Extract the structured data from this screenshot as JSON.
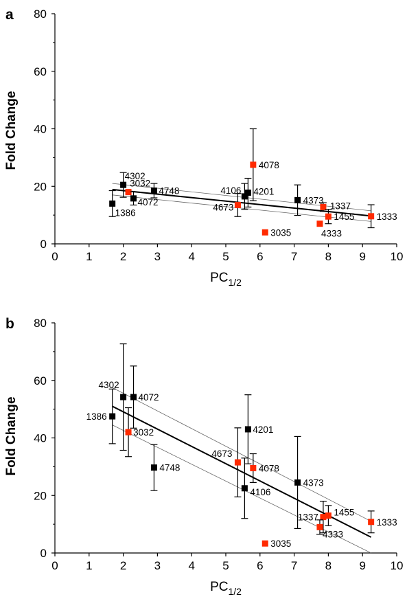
{
  "chart_data": [
    {
      "type": "scatter",
      "panel": "a",
      "xlabel": "PC",
      "xlabel_sub": "1/2",
      "ylabel": "Fold Change",
      "xlim": [
        0,
        10
      ],
      "ylim": [
        0,
        80
      ],
      "xticks": [
        "0",
        "1",
        "2",
        "3",
        "4",
        "5",
        "6",
        "7",
        "8",
        "9",
        "10"
      ],
      "yticks": [
        "0",
        "20",
        "40",
        "60",
        "80"
      ],
      "grid": false,
      "colors": {
        "black_series": "#000000",
        "red_series": "#ff2a00",
        "fit": "#000000",
        "ci": "#666666"
      },
      "points": [
        {
          "id": "1386",
          "x": 1.68,
          "y": 14.0,
          "err": 4.5,
          "color": "black"
        },
        {
          "id": "4302",
          "x": 2.0,
          "y": 20.5,
          "err": 4.3,
          "color": "black"
        },
        {
          "id": "3032",
          "x": 2.15,
          "y": 18.0,
          "err": 0,
          "color": "red"
        },
        {
          "id": "4072",
          "x": 2.3,
          "y": 15.8,
          "err": 2.3,
          "color": "black"
        },
        {
          "id": "4748",
          "x": 2.9,
          "y": 18.5,
          "err": 2.5,
          "color": "black"
        },
        {
          "id": "4673",
          "x": 5.35,
          "y": 13.5,
          "err": 4.0,
          "color": "red"
        },
        {
          "id": "4106",
          "x": 5.55,
          "y": 16.5,
          "err": 4.5,
          "color": "black"
        },
        {
          "id": "4201",
          "x": 5.65,
          "y": 17.8,
          "err": 5.0,
          "color": "black"
        },
        {
          "id": "4078",
          "x": 5.8,
          "y": 27.5,
          "err": 12.5,
          "color": "red"
        },
        {
          "id": "3035",
          "x": 6.15,
          "y": 4.0,
          "err": 0,
          "color": "red"
        },
        {
          "id": "4373",
          "x": 7.1,
          "y": 15.2,
          "err": 5.3,
          "color": "black"
        },
        {
          "id": "1337",
          "x": 7.85,
          "y": 12.8,
          "err": 1.5,
          "color": "red"
        },
        {
          "id": "4333",
          "x": 7.75,
          "y": 7.0,
          "err": 0,
          "color": "red"
        },
        {
          "id": "1455",
          "x": 8.0,
          "y": 9.5,
          "err": 2.5,
          "color": "red"
        },
        {
          "id": "1333",
          "x": 9.25,
          "y": 9.6,
          "err": 4.0,
          "color": "red"
        }
      ],
      "fit_line": {
        "x": [
          1.68,
          9.25
        ],
        "y": [
          18.9,
          9.7
        ]
      },
      "ci_upper": {
        "x": [
          1.68,
          9.25
        ],
        "y": [
          21.0,
          11.5
        ]
      },
      "ci_lower": {
        "x": [
          1.68,
          9.25
        ],
        "y": [
          17.0,
          7.8
        ]
      }
    },
    {
      "type": "scatter",
      "panel": "b",
      "xlabel": "PC",
      "xlabel_sub": "1/2",
      "ylabel": "Fold Change",
      "xlim": [
        0,
        10
      ],
      "ylim": [
        0,
        80
      ],
      "xticks": [
        "0",
        "1",
        "2",
        "3",
        "4",
        "5",
        "6",
        "7",
        "8",
        "9",
        "10"
      ],
      "yticks": [
        "0",
        "20",
        "40",
        "60",
        "80"
      ],
      "grid": false,
      "colors": {
        "black_series": "#000000",
        "red_series": "#ff2a00",
        "fit": "#000000",
        "ci": "#666666"
      },
      "points": [
        {
          "id": "1386",
          "x": 1.68,
          "y": 47.5,
          "err": 9.5,
          "color": "black"
        },
        {
          "id": "4302",
          "x": 2.0,
          "y": 54.2,
          "err": 18.5,
          "color": "black"
        },
        {
          "id": "3032",
          "x": 2.15,
          "y": 42.0,
          "err": 8.5,
          "color": "red"
        },
        {
          "id": "4072",
          "x": 2.3,
          "y": 54.2,
          "err": 10.8,
          "color": "black"
        },
        {
          "id": "4748",
          "x": 2.9,
          "y": 29.7,
          "err": 8.0,
          "color": "black"
        },
        {
          "id": "4673",
          "x": 5.35,
          "y": 31.5,
          "err": 12.0,
          "color": "red"
        },
        {
          "id": "4106",
          "x": 5.55,
          "y": 22.5,
          "err": 10.5,
          "color": "black"
        },
        {
          "id": "4201",
          "x": 5.65,
          "y": 43.0,
          "err": 12.0,
          "color": "black"
        },
        {
          "id": "4078",
          "x": 5.8,
          "y": 29.5,
          "err": 5.0,
          "color": "red"
        },
        {
          "id": "3035",
          "x": 6.15,
          "y": 3.3,
          "err": 0,
          "color": "red"
        },
        {
          "id": "4373",
          "x": 7.1,
          "y": 24.5,
          "err": 16.0,
          "color": "black"
        },
        {
          "id": "1337",
          "x": 7.85,
          "y": 12.5,
          "err": 5.5,
          "color": "red"
        },
        {
          "id": "4333",
          "x": 7.75,
          "y": 9.0,
          "err": 2.5,
          "color": "red"
        },
        {
          "id": "1455",
          "x": 8.0,
          "y": 13.0,
          "err": 3.5,
          "color": "red"
        },
        {
          "id": "1333",
          "x": 9.25,
          "y": 10.8,
          "err": 3.8,
          "color": "red"
        }
      ],
      "fit_line": {
        "x": [
          1.68,
          9.25
        ],
        "y": [
          51.0,
          5.5
        ]
      },
      "ci_upper": {
        "x": [
          1.68,
          9.25
        ],
        "y": [
          57.5,
          11.0
        ]
      },
      "ci_lower": {
        "x": [
          1.68,
          9.25
        ],
        "y": [
          44.5,
          0.0
        ]
      }
    }
  ]
}
